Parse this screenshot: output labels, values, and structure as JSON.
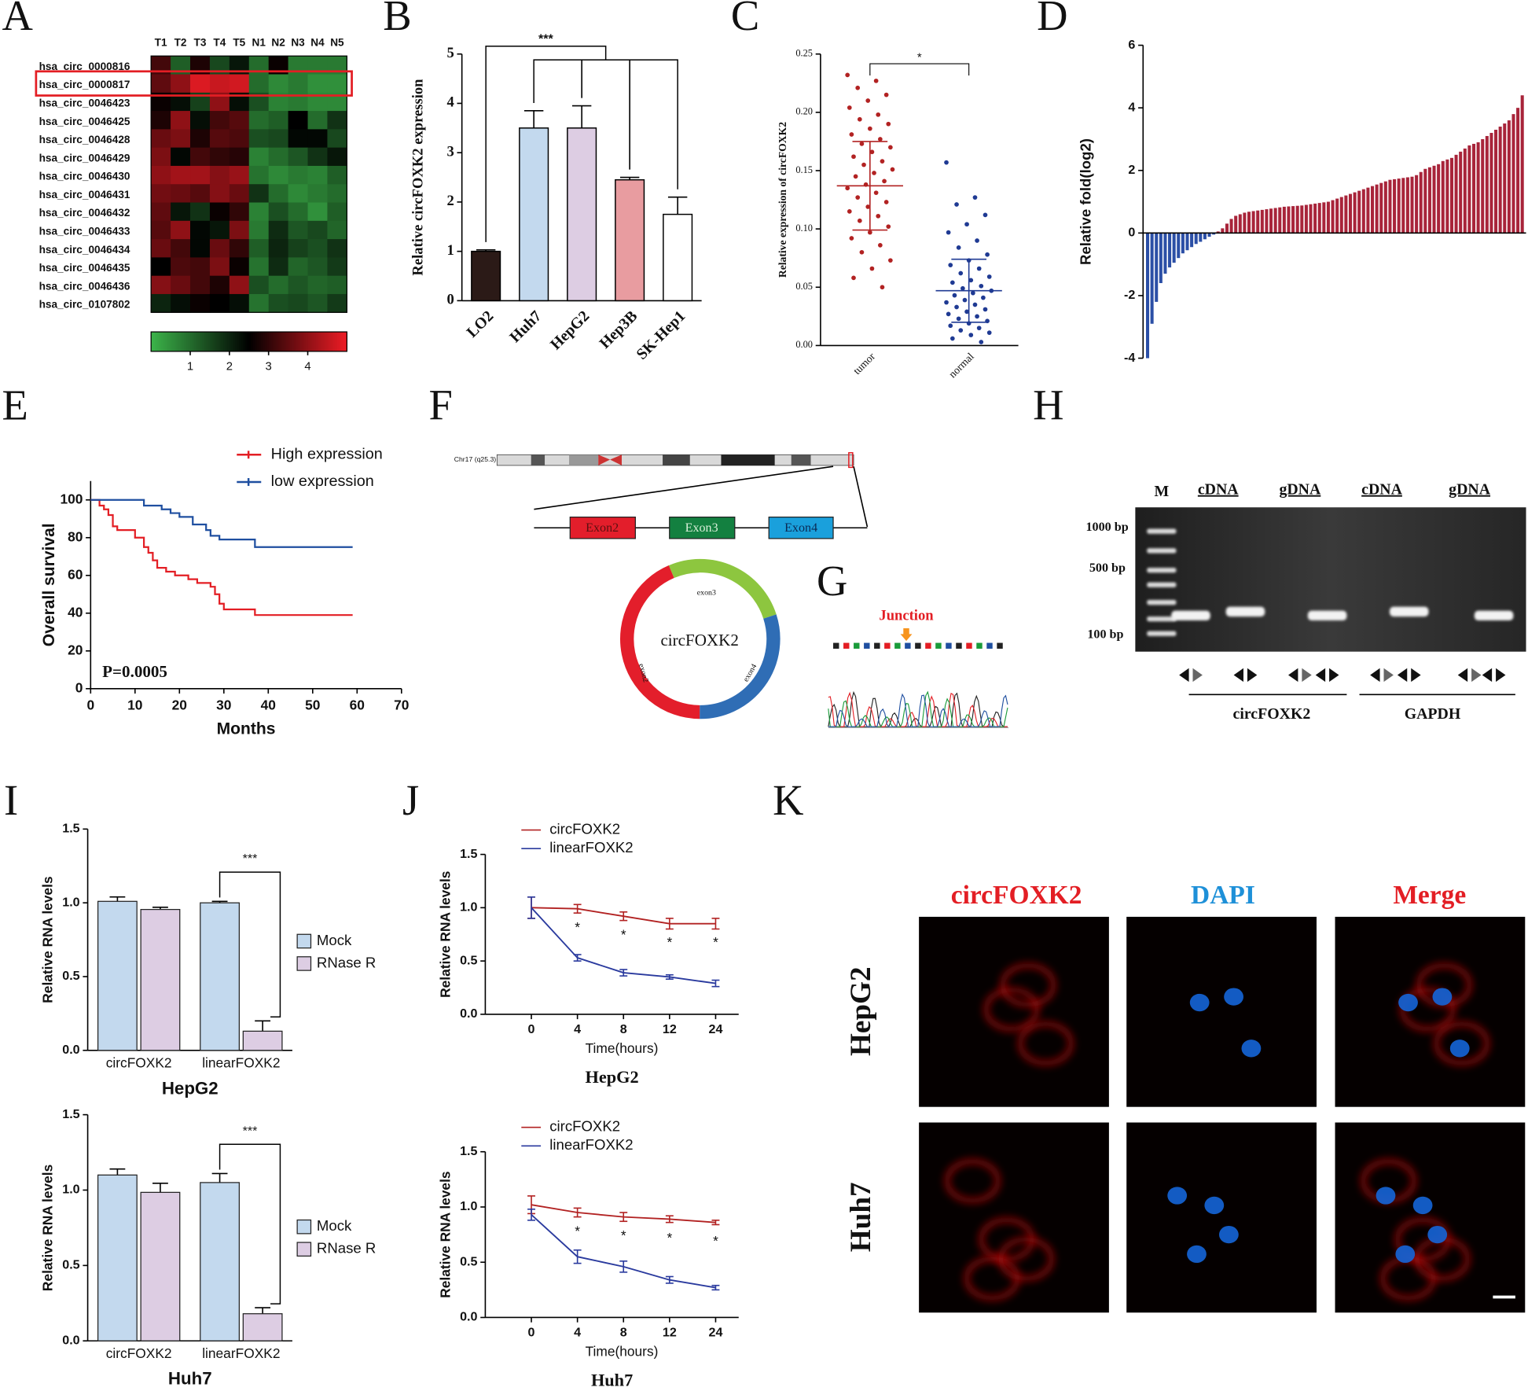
{
  "figure": {
    "panel_labels": [
      "A",
      "B",
      "C",
      "D",
      "E",
      "F",
      "G",
      "H",
      "I",
      "J",
      "K"
    ]
  },
  "chart_data": [
    {
      "type": "heatmap",
      "rows": [
        "hsa_circ_0000816",
        "hsa_circ_0000817",
        "hsa_circ_0046423",
        "hsa_circ_0046425",
        "hsa_circ_0046428",
        "hsa_circ_0046429",
        "hsa_circ_0046430",
        "hsa_circ_0046431",
        "hsa_circ_0046432",
        "hsa_circ_0046433",
        "hsa_circ_0046434",
        "hsa_circ_0046435",
        "hsa_circ_0046436",
        "hsa_circ_0107802"
      ],
      "columns": [
        "T1",
        "T2",
        "T3",
        "T4",
        "T5",
        "N1",
        "N2",
        "N3",
        "N4",
        "N5"
      ],
      "values": [
        [
          3.2,
          1.2,
          2.8,
          1.5,
          2.2,
          1.0,
          2.6,
          0.8,
          0.8,
          0.8
        ],
        [
          3.5,
          4.0,
          4.8,
          4.6,
          4.7,
          1.0,
          0.6,
          0.8,
          0.5,
          0.5
        ],
        [
          2.6,
          2.3,
          1.6,
          4.0,
          2.3,
          1.4,
          0.7,
          0.8,
          0.6,
          0.6
        ],
        [
          2.8,
          4.0,
          2.3,
          3.2,
          3.4,
          1.0,
          1.2,
          2.5,
          1.0,
          1.8
        ],
        [
          3.6,
          3.8,
          2.8,
          3.4,
          3.3,
          1.4,
          1.5,
          2.4,
          2.4,
          1.5
        ],
        [
          3.8,
          2.4,
          3.2,
          3.0,
          2.9,
          0.7,
          1.0,
          1.3,
          1.8,
          2.2
        ],
        [
          4.0,
          4.2,
          4.2,
          3.9,
          4.1,
          0.9,
          0.6,
          0.8,
          0.7,
          1.2
        ],
        [
          3.7,
          3.6,
          3.4,
          3.9,
          3.6,
          1.8,
          1.0,
          0.6,
          0.8,
          1.0
        ],
        [
          3.5,
          2.2,
          1.8,
          2.6,
          3.0,
          0.7,
          1.4,
          1.0,
          0.5,
          1.2
        ],
        [
          3.4,
          4.0,
          2.4,
          2.2,
          3.8,
          0.8,
          1.9,
          1.3,
          1.5,
          1.1
        ],
        [
          3.6,
          3.2,
          2.4,
          3.6,
          3.0,
          1.2,
          2.0,
          1.6,
          1.4,
          1.8
        ],
        [
          2.5,
          3.3,
          3.2,
          3.8,
          2.6,
          0.9,
          1.9,
          1.1,
          1.3,
          1.7
        ],
        [
          3.9,
          3.6,
          3.2,
          2.8,
          4.0,
          1.4,
          1.0,
          1.3,
          1.1,
          1.2
        ],
        [
          2.0,
          2.3,
          2.6,
          2.5,
          2.3,
          0.9,
          1.4,
          1.5,
          1.3,
          1.7
        ]
      ],
      "clim": [
        0,
        5
      ],
      "colorbar_ticks": [
        1,
        2,
        3,
        4
      ],
      "colormap": [
        "#3cb44a",
        "#000000",
        "#ee1c25"
      ],
      "highlight_row": 1,
      "highlight_color": "#e31e24"
    },
    {
      "type": "bar",
      "ylabel": "Relative circFOXK2 expression",
      "categories": [
        "LO2",
        "Huh7",
        "HepG2",
        "Hep3B",
        "SK-Hep1"
      ],
      "values": [
        1.0,
        3.5,
        3.5,
        2.45,
        1.75
      ],
      "errors": [
        0.03,
        0.35,
        0.45,
        0.05,
        0.35
      ],
      "colors": [
        "#2b1a17",
        "#c3d9ee",
        "#ddcde3",
        "#e89ca0",
        "#ffffff"
      ],
      "ylim": [
        0,
        5
      ],
      "yticks": [
        0,
        1,
        2,
        3,
        4,
        5
      ],
      "annotation": "***"
    },
    {
      "type": "strip",
      "ylabel": "Relative expression of circFOXK2",
      "categories": [
        "tumor",
        "normal"
      ],
      "colors": [
        "#b22222",
        "#1f3a93"
      ],
      "points": [
        [
          0.232,
          0.227,
          0.221,
          0.215,
          0.21,
          0.204,
          0.198,
          0.194,
          0.19,
          0.186,
          0.181,
          0.177,
          0.173,
          0.17,
          0.166,
          0.162,
          0.158,
          0.155,
          0.151,
          0.148,
          0.145,
          0.141,
          0.138,
          0.135,
          0.131,
          0.127,
          0.123,
          0.119,
          0.115,
          0.111,
          0.107,
          0.102,
          0.097,
          0.092,
          0.086,
          0.08,
          0.073,
          0.066,
          0.058,
          0.05
        ],
        [
          0.157,
          0.127,
          0.121,
          0.112,
          0.104,
          0.097,
          0.09,
          0.084,
          0.078,
          0.073,
          0.069,
          0.066,
          0.062,
          0.059,
          0.056,
          0.054,
          0.051,
          0.049,
          0.047,
          0.045,
          0.043,
          0.041,
          0.039,
          0.037,
          0.035,
          0.033,
          0.031,
          0.029,
          0.027,
          0.025,
          0.023,
          0.021,
          0.019,
          0.017,
          0.015,
          0.013,
          0.011,
          0.009,
          0.006,
          0.003
        ]
      ],
      "means": [
        0.137,
        0.047
      ],
      "lower": [
        0.099,
        0.02
      ],
      "upper": [
        0.175,
        0.074
      ],
      "ylim": [
        0,
        0.25
      ],
      "yticks": [
        {
          "value": 0,
          "label": "0.00"
        },
        0.05,
        {
          "value": 0.1,
          "label": "0.10"
        },
        0.15,
        {
          "value": 0.2,
          "label": "0.20"
        },
        0.25
      ],
      "annotation": "*"
    },
    {
      "type": "waterfall",
      "ylabel": "Relative fold(log2)",
      "color_negative": "#2b4fa6",
      "color_positive": "#a8243a",
      "values": [
        -4.0,
        -2.9,
        -2.2,
        -1.6,
        -1.3,
        -1.1,
        -0.95,
        -0.8,
        -0.65,
        -0.55,
        -0.45,
        -0.35,
        -0.28,
        -0.2,
        -0.12,
        -0.05,
        0.05,
        0.15,
        0.3,
        0.45,
        0.55,
        0.6,
        0.65,
        0.68,
        0.7,
        0.72,
        0.74,
        0.76,
        0.78,
        0.8,
        0.82,
        0.84,
        0.85,
        0.86,
        0.87,
        0.88,
        0.9,
        0.92,
        0.94,
        0.96,
        0.98,
        1.0,
        1.05,
        1.1,
        1.15,
        1.2,
        1.25,
        1.3,
        1.35,
        1.4,
        1.45,
        1.5,
        1.55,
        1.6,
        1.65,
        1.7,
        1.72,
        1.74,
        1.76,
        1.78,
        1.8,
        1.85,
        1.95,
        2.05,
        2.1,
        2.15,
        2.2,
        2.3,
        2.35,
        2.4,
        2.5,
        2.6,
        2.7,
        2.8,
        2.85,
        2.9,
        3.0,
        3.1,
        3.2,
        3.3,
        3.4,
        3.5,
        3.6,
        3.8,
        4.0,
        4.4
      ],
      "ylim": [
        -4,
        6
      ],
      "yticks": [
        -4,
        -2,
        0,
        2,
        4,
        6
      ]
    },
    {
      "type": "step",
      "xlabel": "Months",
      "ylabel": "Overall survival",
      "annotation": "P=0.0005",
      "series": [
        {
          "name": "High expression",
          "color": "#e31e24",
          "x": [
            0,
            2,
            3,
            4,
            5,
            6,
            10,
            12,
            13,
            14,
            15,
            17,
            19,
            22,
            24,
            27,
            28,
            29,
            30,
            35,
            37,
            59
          ],
          "values": [
            100,
            97,
            95,
            92,
            86,
            84,
            80,
            75,
            72,
            68,
            64,
            62,
            60,
            58,
            56,
            54,
            50,
            45,
            42,
            42,
            39,
            39
          ]
        },
        {
          "name": "low expression",
          "color": "#1f4fa0",
          "x": [
            0,
            10,
            12,
            16,
            18,
            20,
            23,
            26,
            27,
            29,
            37,
            59
          ],
          "values": [
            100,
            100,
            97,
            95,
            93,
            91,
            87,
            84,
            81,
            79,
            75,
            75
          ]
        }
      ],
      "xlim": [
        0,
        70
      ],
      "xticks": [
        0,
        10,
        20,
        30,
        40,
        50,
        60,
        70
      ],
      "ylim": [
        0,
        110
      ],
      "yticks": [
        0,
        20,
        40,
        60,
        80,
        100
      ]
    },
    {
      "type": "grouped_bar",
      "title": "HepG2",
      "ylabel": "Relative RNA levels",
      "categories": [
        "circFOXK2",
        "linearFOXK2"
      ],
      "annotation": "***",
      "series": [
        {
          "name": "Mock",
          "color": "#c3d9ee",
          "values": [
            1.01,
            1.0
          ],
          "errors": [
            0.03,
            0.01
          ]
        },
        {
          "name": "RNase R",
          "color": "#ddcde3",
          "values": [
            0.955,
            0.13
          ],
          "errors": [
            0.015,
            0.07
          ]
        }
      ],
      "ylim": [
        0,
        1.5
      ],
      "yticks": [
        {
          "value": 0,
          "label": "0.0"
        },
        0.5,
        {
          "value": 1,
          "label": "1.0"
        },
        1.5
      ]
    },
    {
      "type": "grouped_bar",
      "title": "Huh7",
      "ylabel": "Relative RNA levels",
      "categories": [
        "circFOXK2",
        "linearFOXK2"
      ],
      "annotation": "***",
      "series": [
        {
          "name": "Mock",
          "color": "#c3d9ee",
          "values": [
            1.1,
            1.05
          ],
          "errors": [
            0.04,
            0.06
          ]
        },
        {
          "name": "RNase R",
          "color": "#ddcde3",
          "values": [
            0.985,
            0.18
          ],
          "errors": [
            0.06,
            0.04
          ]
        }
      ],
      "ylim": [
        0,
        1.5
      ],
      "yticks": [
        {
          "value": 0,
          "label": "0.0"
        },
        0.5,
        {
          "value": 1,
          "label": "1.0"
        },
        1.5
      ]
    },
    {
      "type": "line",
      "title": "HepG2",
      "xlabel": "Time(hours)",
      "ylabel": "Relative RNA levels",
      "categories": [
        "0",
        "4",
        "8",
        "12",
        "24"
      ],
      "markers": [
        null,
        "*",
        "*",
        "*",
        "*"
      ],
      "series": [
        {
          "name": "circFOXK2",
          "color": "#b22222",
          "values": [
            1.0,
            0.99,
            0.92,
            0.85,
            0.85
          ],
          "errors": [
            0.1,
            0.04,
            0.04,
            0.05,
            0.05
          ]
        },
        {
          "name": "linearFOXK2",
          "color": "#2a3a9e",
          "values": [
            1.0,
            0.53,
            0.39,
            0.35,
            0.29
          ],
          "errors": [
            0.1,
            0.03,
            0.03,
            0.02,
            0.03
          ]
        }
      ],
      "ylim": [
        0,
        1.5
      ],
      "yticks": [
        {
          "value": 0,
          "label": "0.0"
        },
        0.5,
        {
          "value": 1,
          "label": "1.0"
        },
        1.5
      ]
    },
    {
      "type": "line",
      "title": "Huh7",
      "xlabel": "Time(hours)",
      "ylabel": "Relative RNA levels",
      "categories": [
        "0",
        "4",
        "8",
        "12",
        "24"
      ],
      "markers": [
        null,
        "*",
        "*",
        "*",
        "*"
      ],
      "series": [
        {
          "name": "circFOXK2",
          "color": "#b22222",
          "values": [
            1.02,
            0.95,
            0.91,
            0.89,
            0.86
          ],
          "errors": [
            0.08,
            0.04,
            0.04,
            0.03,
            0.02
          ]
        },
        {
          "name": "linearFOXK2",
          "color": "#2a3a9e",
          "values": [
            0.93,
            0.55,
            0.46,
            0.34,
            0.27
          ],
          "errors": [
            0.05,
            0.06,
            0.05,
            0.03,
            0.02
          ]
        }
      ],
      "ylim": [
        0,
        1.5
      ],
      "yticks": [
        {
          "value": 0,
          "label": "0.0"
        },
        0.5,
        {
          "value": 1,
          "label": "1.0"
        },
        1.5
      ]
    }
  ],
  "diagram_f": {
    "chromosome": "Chr17 (q25.3)",
    "exons": [
      "Exon2",
      "Exon3",
      "Exon4"
    ],
    "circle": "circFOXK2",
    "arc_labels": [
      "exon3",
      "exon2",
      "exon4"
    ]
  },
  "panel_g": {
    "label": "Junction"
  },
  "gel_h": {
    "lanes": [
      "M",
      "cDNA",
      "gDNA",
      "cDNA",
      "gDNA"
    ],
    "markers": [
      "1000 bp",
      "500 bp",
      "100 bp"
    ],
    "groups": [
      "circFOXK2",
      "GAPDH"
    ]
  },
  "images_k": {
    "columns": [
      "circFOXK2",
      "DAPI",
      "Merge"
    ],
    "rows": [
      "HepG2",
      "Huh7"
    ]
  }
}
